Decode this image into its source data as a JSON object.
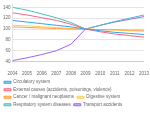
{
  "chart_data": {
    "type": "line",
    "x": [
      2004,
      2005,
      2006,
      2007,
      2008,
      2009,
      2010,
      2011,
      2012,
      2013
    ],
    "series": [
      {
        "name": "Circulatory system",
        "values": [
          116,
          113,
          110,
          107,
          104,
          100,
          97,
          94,
          92,
          90
        ]
      },
      {
        "name": "External causes (accidents, poisonings, violence)",
        "values": [
          130,
          126,
          121,
          116,
          109,
          100,
          95,
          91,
          88,
          85
        ]
      },
      {
        "name": "Cancer / malignant neoplasms",
        "values": [
          104,
          103,
          102,
          101,
          100,
          100,
          99,
          99,
          98,
          98
        ]
      },
      {
        "name": "Digestive system",
        "values": [
          107,
          106,
          104,
          103,
          101,
          100,
          99,
          98,
          97,
          96
        ]
      },
      {
        "name": "Respiratory system diseases",
        "values": [
          140,
          135,
          128,
          121,
          112,
          100,
          107,
          114,
          120,
          126
        ]
      },
      {
        "name": "Transport accidents",
        "values": [
          42,
          47,
          53,
          60,
          72,
          100,
          107,
          113,
          118,
          123
        ]
      }
    ],
    "xlim": [
      2004,
      2013
    ],
    "xticks": [
      2004,
      2005,
      2006,
      2007,
      2008,
      2009,
      2010,
      2011,
      2012,
      2013
    ],
    "ylim": [
      40,
      145
    ],
    "yticks": [
      40,
      60,
      80,
      100,
      120,
      140
    ],
    "grid": true,
    "legend": "bottom"
  }
}
